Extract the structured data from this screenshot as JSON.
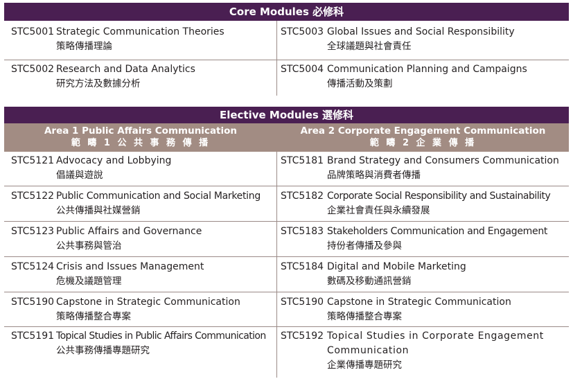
{
  "core": {
    "header": "Core Modules 必修科",
    "rows": [
      [
        {
          "code": "STC5001",
          "title": "Strategic Communication Theories",
          "zh": "策略傳播理論"
        },
        {
          "code": "STC5003",
          "title": "Global Issues and Social Responsibility",
          "zh": "全球議題與社會責任"
        }
      ],
      [
        {
          "code": "STC5002",
          "title": "Research and Data Analytics",
          "zh": "研究方法及數據分析"
        },
        {
          "code": "STC5004",
          "title": "Communication Planning and Campaigns",
          "zh": "傳播活動及策劃"
        }
      ]
    ]
  },
  "elective": {
    "header": "Elective Modules 選修科",
    "areas": [
      {
        "en": "Area 1 Public Affairs Communication",
        "zh": "範 疇 1 公 共 事 務 傳 播"
      },
      {
        "en": "Area 2 Corporate Engagement Communication",
        "zh": "範 疇 2 企 業 傳 播"
      }
    ],
    "rows": [
      [
        {
          "code": "STC5121",
          "title": "Advocacy and Lobbying",
          "zh": "倡議與遊說"
        },
        {
          "code": "STC5181",
          "title": "Brand Strategy and Consumers Communication",
          "zh": "品牌策略與消費者傳播"
        }
      ],
      [
        {
          "code": "STC5122",
          "title": "Public Communication and Social Marketing",
          "zh": "公共傳播與社媒營銷"
        },
        {
          "code": "STC5182",
          "title": "Corporate Social Responsibility and Sustainability",
          "zh": "企業社會責任與永續發展"
        }
      ],
      [
        {
          "code": "STC5123",
          "title": "Public Affairs and Governance",
          "zh": "公共事務與管治"
        },
        {
          "code": "STC5183",
          "title": "Stakeholders Communication and Engagement",
          "zh": "持份者傳播及參與"
        }
      ],
      [
        {
          "code": "STC5124",
          "title": "Crisis and Issues Management",
          "zh": "危機及議題管理"
        },
        {
          "code": "STC5184",
          "title": "Digital and Mobile Marketing",
          "zh": "數碼及移動通訊營銷"
        }
      ],
      [
        {
          "code": "STC5190",
          "title": "Capstone in Strategic Communication",
          "zh": "策略傳播整合專案"
        },
        {
          "code": "STC5190",
          "title": "Capstone in Strategic Communication",
          "zh": "策略傳播整合專案"
        }
      ],
      [
        {
          "code": "STC5191",
          "title": "Topical Studies in Public Affairs Communication",
          "zh": "公共事務傳播專題研究"
        },
        {
          "code": "STC5192",
          "title": "Topical Studies in Corporate Engagement Communication",
          "zh": "企業傳播專題研究"
        }
      ]
    ]
  },
  "colors": {
    "band": "#4a1f52",
    "area": "#a28c83",
    "divider": "#9a8a87",
    "text": "#231f20"
  }
}
